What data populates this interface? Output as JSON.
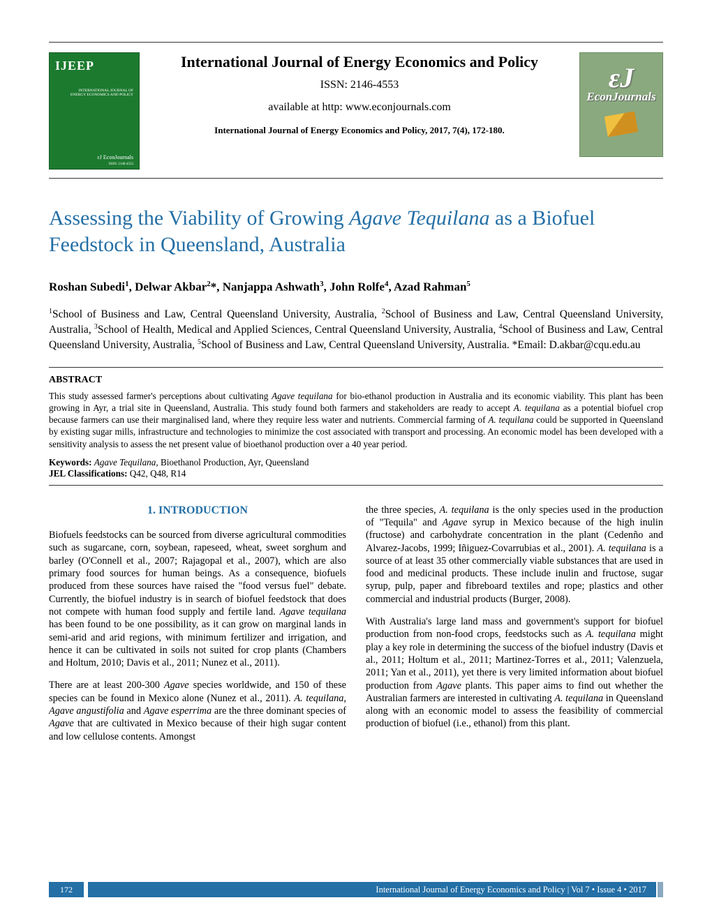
{
  "header": {
    "journal_name": "International Journal of Energy Economics and Policy",
    "issn_line": "ISSN: 2146-4553",
    "available_line": "available at http: www.econjournals.com",
    "citation_line": "International Journal of Energy Economics and Policy, 2017, 7(4), 172-180.",
    "cover": {
      "abbr": "IJEEP",
      "full1": "INTERNATIONAL JOURNAL OF",
      "full2": "ENERGY ECONOMICS AND POLICY",
      "ej": "εJ EconJournals",
      "issn": "ISSN: 2146-4553"
    },
    "ej_logo": {
      "big": "εJ",
      "word": "EconJournals"
    }
  },
  "title": {
    "part1": "Assessing the Viability of Growing ",
    "italic": "Agave Tequilana",
    "part2": " as a Biofuel Feedstock in Queensland, Australia"
  },
  "authors_html": "Roshan Subedi<sup>1</sup>, Delwar Akbar<sup>2</sup>*, Nanjappa Ashwath<sup>3</sup>, John Rolfe<sup>4</sup>, Azad Rahman<sup>5</sup>",
  "affiliations_html": "<sup>1</sup>School of Business and Law, Central Queensland University, Australia, <sup>2</sup>School of Business and Law, Central Queensland University, Australia, <sup>3</sup>School of Health, Medical and Applied Sciences, Central Queensland University, Australia, <sup>4</sup>School of Business and Law, Central Queensland University, Australia, <sup>5</sup>School of Business and Law, Central Queensland University, Australia. *Email: D.akbar@cqu.edu.au",
  "abstract": {
    "label": "ABSTRACT",
    "body_html": "This study assessed farmer's perceptions about cultivating <span class=\"italic\">Agave tequilana</span> for bio-ethanol production in Australia and its economic viability. This plant has been growing in Ayr, a trial site in Queensland, Australia. This study found both farmers and stakeholders are ready to accept <span class=\"italic\">A. tequilana</span> as a potential biofuel crop because farmers can use their marginalised land, where they require less water and nutrients. Commercial farming of <span class=\"italic\">A. tequilana</span> could be supported in Queensland by existing sugar mills, infrastructure and technologies to minimize the cost associated with transport and processing. An economic model has been developed with a sensitivity analysis to assess the net present value of bioethanol production over a 40 year period.",
    "keywords_label": "Keywords:",
    "keywords_value_html": " <span class=\"italic\">Agave Tequilana</span>, Bioethanol Production, Ayr, Queensland",
    "jel_label": "JEL Classifications:",
    "jel_value": " Q42, Q48, R14"
  },
  "section_head": "1. INTRODUCTION",
  "col_left": {
    "p1_html": "Biofuels feedstocks can be sourced from diverse agricultural commodities such as sugarcane, corn, soybean, rapeseed, wheat, sweet sorghum and barley (O'Connell et al., 2007; Rajagopal et al., 2007), which are also primary food sources for human beings. As a consequence, biofuels produced from these sources have raised the \"food versus fuel\" debate. Currently, the biofuel industry is in search of biofuel feedstock that does not compete with human food supply and fertile land. <span class=\"italic\">Agave tequilana</span> has been found to be one possibility, as it can grow on marginal lands in semi-arid and arid regions, with minimum fertilizer and irrigation, and hence it can be cultivated in soils not suited for crop plants (Chambers and Holtum, 2010; Davis et al., 2011; Nunez et al., 2011).",
    "p2_html": "There are at least 200-300 <span class=\"italic\">Agave</span> species worldwide, and 150 of these species can be found in Mexico alone (Nunez et al., 2011). <span class=\"italic\">A. tequilana, Agave angustifolia</span> and <span class=\"italic\">Agave esperrima</span> are the three dominant species of <span class=\"italic\">Agave</span> that are cultivated in Mexico because of their high sugar content and low cellulose contents. Amongst"
  },
  "col_right": {
    "p1_html": "the three species, <span class=\"italic\">A. tequilana</span> is the only species used in the production of \"Tequila\" and <span class=\"italic\">Agave</span> syrup in Mexico because of the high inulin (fructose) and carbohydrate concentration in the plant (Cedenño and Alvarez-Jacobs, 1999; Iñiguez-Covarrubias et al., 2001). <span class=\"italic\">A. tequilana</span> is a source of at least 35 other commercially viable substances that are used in food and medicinal products. These include inulin and fructose, sugar syrup, pulp, paper and fibreboard textiles and rope; plastics and other commercial and industrial products (Burger, 2008).",
    "p2_html": "With Australia's large land mass and government's support for biofuel production from non-food crops, feedstocks such as <span class=\"italic\">A. tequilana</span> might play a key role in determining the success of the biofuel industry (Davis et al., 2011; Holtum et al., 2011; Martinez-Torres et al., 2011; Valenzuela, 2011; Yan et al., 2011), yet there is very limited information about biofuel production from <span class=\"italic\">Agave</span> plants. This paper aims to find out whether the Australian farmers are interested in cultivating <span class=\"italic\">A. tequilana</span> in Queensland along with an economic model to assess the feasibility of commercial production of biofuel (i.e., ethanol) from this plant."
  },
  "footer": {
    "page": "172",
    "bar_text": "International Journal of Energy Economics and Policy | Vol 7 • Issue 4 • 2017"
  },
  "colors": {
    "accent": "#236fa6",
    "cover_green": "#1c7a2f",
    "ej_bg": "#8aa97f"
  }
}
